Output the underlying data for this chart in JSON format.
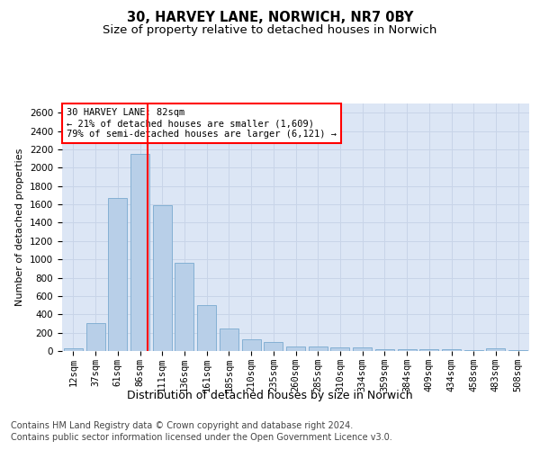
{
  "title_line1": "30, HARVEY LANE, NORWICH, NR7 0BY",
  "title_line2": "Size of property relative to detached houses in Norwich",
  "xlabel": "Distribution of detached houses by size in Norwich",
  "ylabel": "Number of detached properties",
  "bar_color": "#b8cfe8",
  "bar_edge_color": "#7aaad0",
  "categories": [
    "12sqm",
    "37sqm",
    "61sqm",
    "86sqm",
    "111sqm",
    "136sqm",
    "161sqm",
    "185sqm",
    "210sqm",
    "235sqm",
    "260sqm",
    "285sqm",
    "310sqm",
    "334sqm",
    "359sqm",
    "384sqm",
    "409sqm",
    "434sqm",
    "458sqm",
    "483sqm",
    "508sqm"
  ],
  "values": [
    25,
    300,
    1670,
    2150,
    1590,
    960,
    500,
    250,
    125,
    100,
    50,
    50,
    40,
    35,
    20,
    20,
    20,
    20,
    5,
    25,
    5
  ],
  "vline_x_index": 3,
  "vline_color": "red",
  "annotation_text": "30 HARVEY LANE: 82sqm\n← 21% of detached houses are smaller (1,609)\n79% of semi-detached houses are larger (6,121) →",
  "annotation_box_color": "white",
  "annotation_box_edge": "red",
  "ylim": [
    0,
    2700
  ],
  "yticks": [
    0,
    200,
    400,
    600,
    800,
    1000,
    1200,
    1400,
    1600,
    1800,
    2000,
    2200,
    2400,
    2600
  ],
  "grid_color": "#c8d4e8",
  "background_color": "#dce6f5",
  "footer_line1": "Contains HM Land Registry data © Crown copyright and database right 2024.",
  "footer_line2": "Contains public sector information licensed under the Open Government Licence v3.0.",
  "title_fontsize": 10.5,
  "subtitle_fontsize": 9.5,
  "ylabel_fontsize": 8,
  "xlabel_fontsize": 9,
  "tick_fontsize": 7.5,
  "footer_fontsize": 7,
  "annotation_fontsize": 7.5
}
